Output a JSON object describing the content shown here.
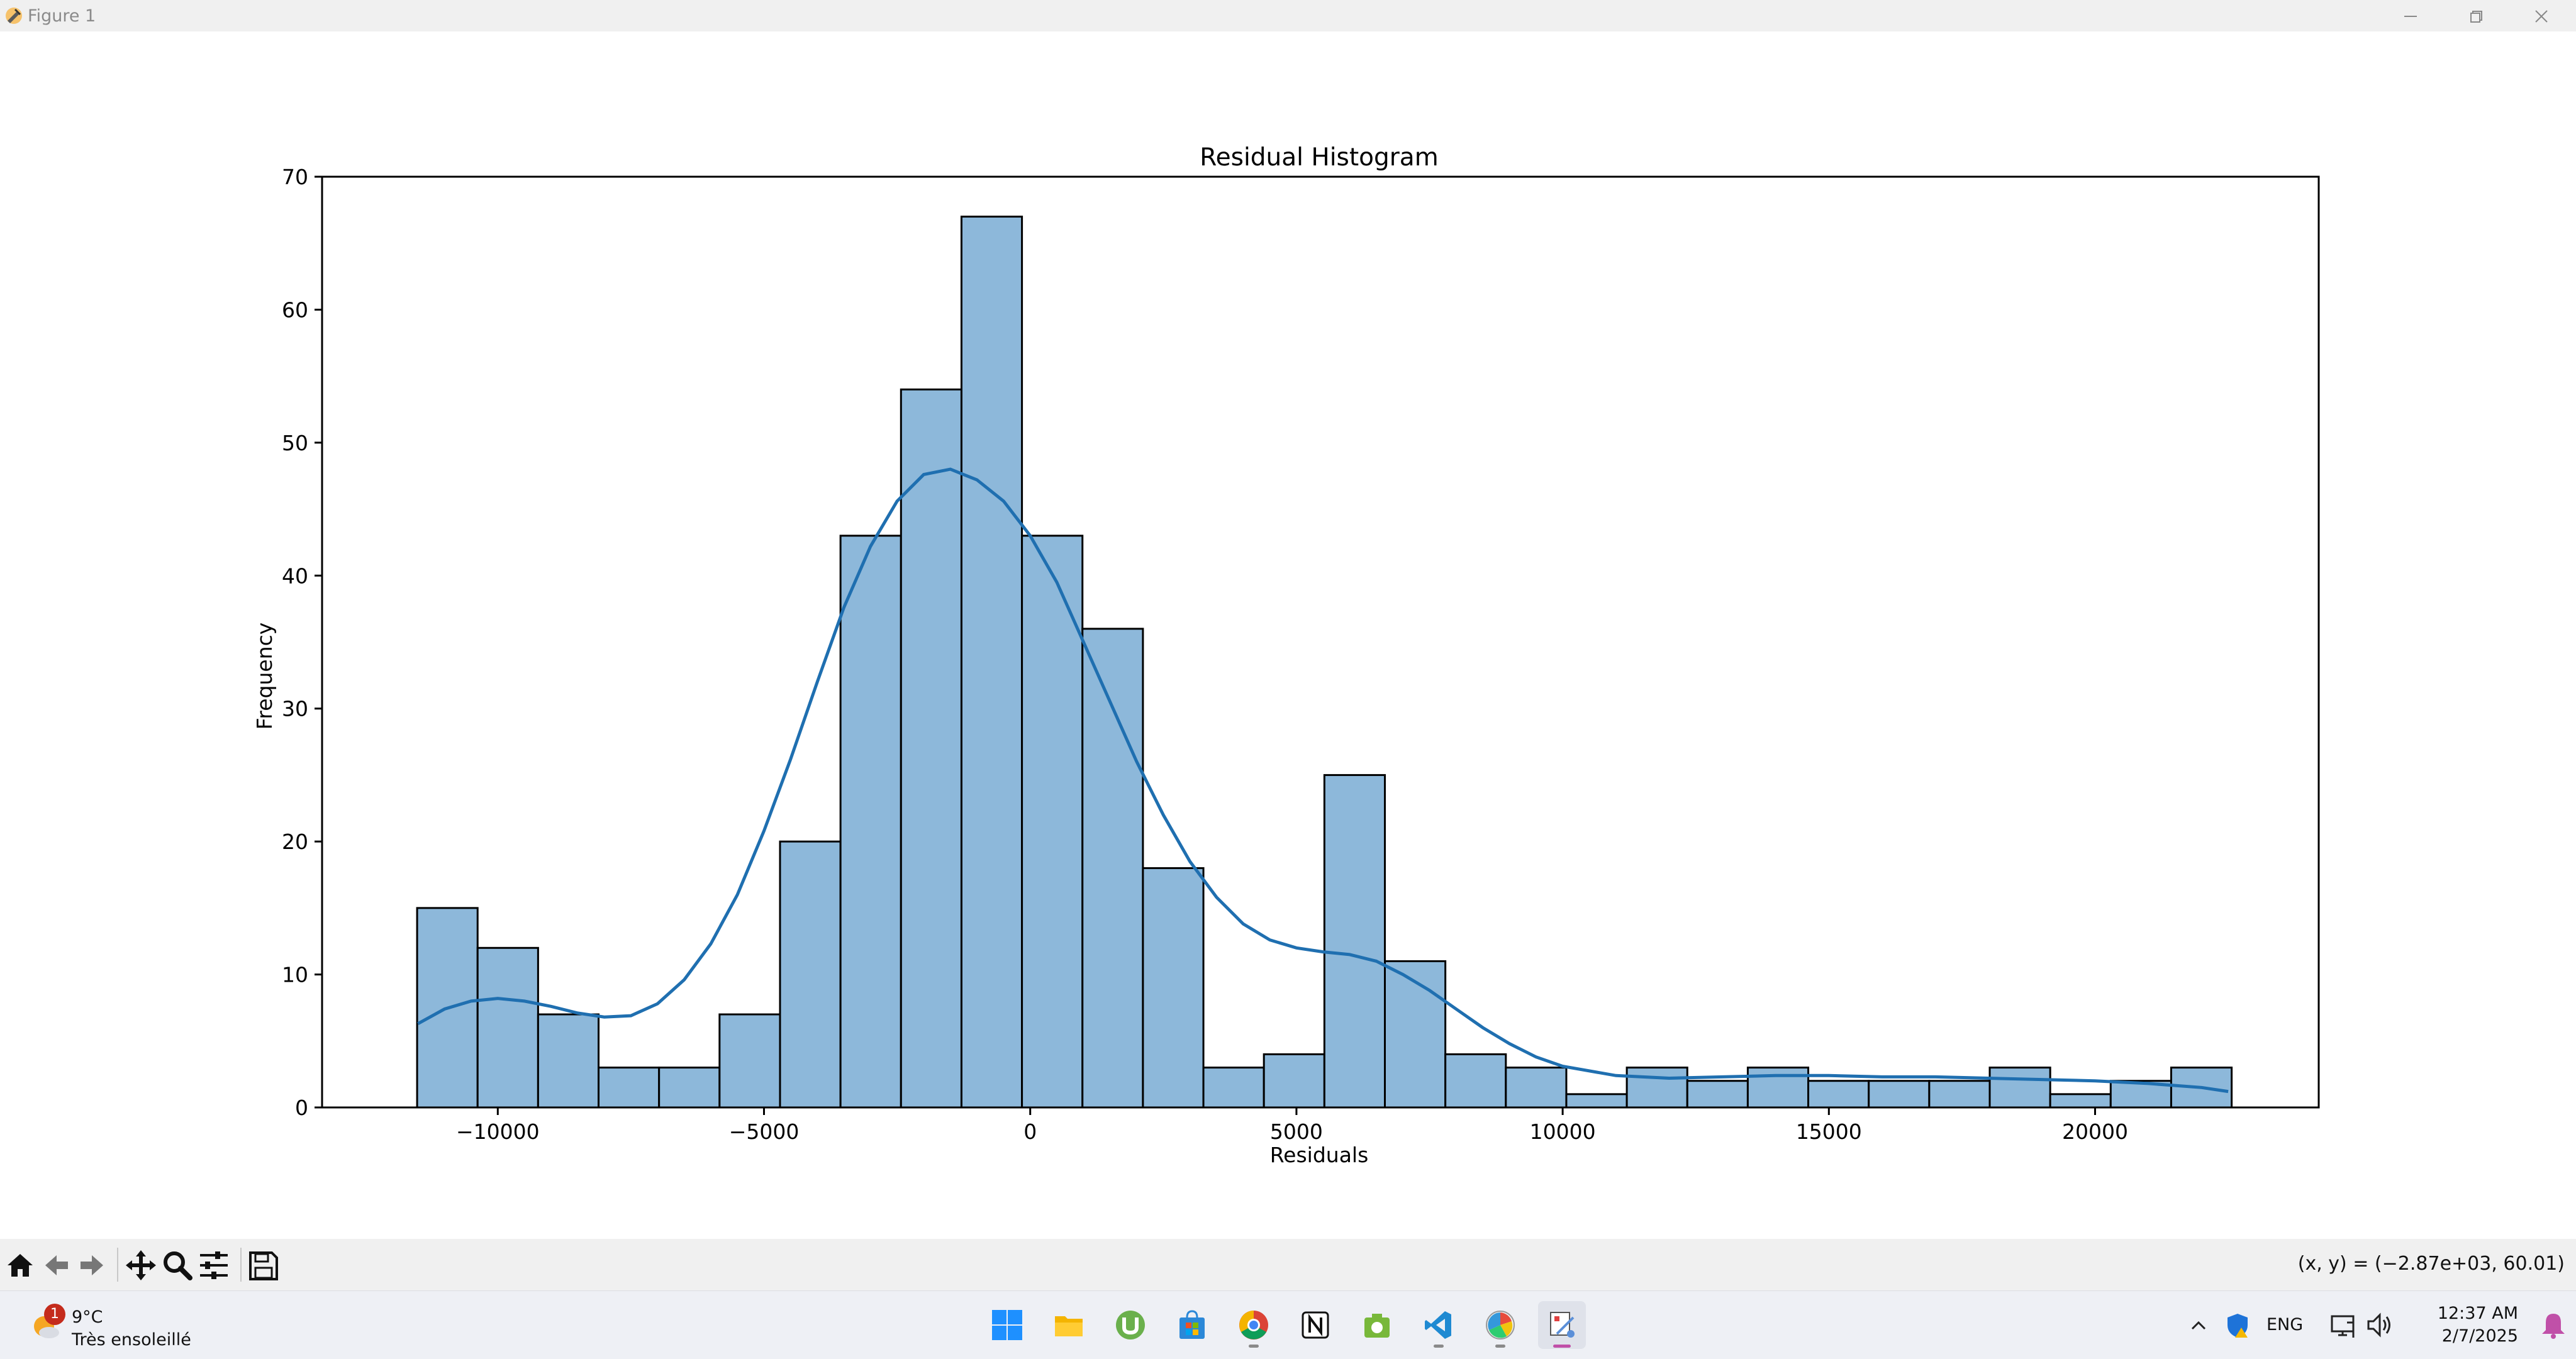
{
  "window": {
    "title": "Figure 1"
  },
  "chart_data": {
    "type": "bar",
    "title": "Residual Histogram",
    "xlabel": "Residuals",
    "ylabel": "Frequency",
    "xlim": [
      -13300,
      24200
    ],
    "ylim": [
      0,
      70
    ],
    "xticks": [
      -10000,
      -5000,
      0,
      5000,
      10000,
      15000,
      20000
    ],
    "xtick_labels": [
      "−10000",
      "−5000",
      "0",
      "5000",
      "10000",
      "15000",
      "20000"
    ],
    "yticks": [
      0,
      10,
      20,
      30,
      40,
      50,
      60,
      70
    ],
    "ytick_labels": [
      "0",
      "10",
      "20",
      "30",
      "40",
      "50",
      "60",
      "70"
    ],
    "bin_start": -11515,
    "bin_width": 1136,
    "values": [
      15,
      12,
      7,
      3,
      3,
      7,
      20,
      43,
      54,
      67,
      43,
      36,
      18,
      3,
      4,
      25,
      11,
      4,
      3,
      1,
      3,
      2,
      3,
      2,
      2,
      2,
      3,
      1,
      2,
      3
    ],
    "kde": {
      "x": [
        -11500,
        -11000,
        -10500,
        -10000,
        -9500,
        -9000,
        -8500,
        -8000,
        -7500,
        -7000,
        -6500,
        -6000,
        -5500,
        -5000,
        -4500,
        -4000,
        -3500,
        -3000,
        -2500,
        -2000,
        -1500,
        -1000,
        -500,
        0,
        500,
        1000,
        1500,
        2000,
        2500,
        3000,
        3500,
        4000,
        4500,
        5000,
        5500,
        6000,
        6500,
        7000,
        7500,
        8000,
        8500,
        9000,
        9500,
        10000,
        11000,
        12000,
        13000,
        14000,
        15000,
        16000,
        17000,
        18000,
        19000,
        20000,
        21000,
        22000,
        22500
      ],
      "y": [
        6.3,
        7.4,
        8.0,
        8.2,
        8.0,
        7.6,
        7.1,
        6.8,
        6.9,
        7.8,
        9.6,
        12.3,
        16.0,
        20.8,
        26.2,
        32.0,
        37.6,
        42.2,
        45.6,
        47.6,
        48.0,
        47.2,
        45.6,
        43.0,
        39.5,
        35.0,
        30.5,
        26.0,
        22.0,
        18.5,
        15.8,
        13.8,
        12.6,
        12.0,
        11.7,
        11.5,
        11.0,
        10.0,
        8.8,
        7.4,
        6.0,
        4.8,
        3.8,
        3.1,
        2.4,
        2.2,
        2.3,
        2.4,
        2.4,
        2.3,
        2.3,
        2.2,
        2.1,
        2.0,
        1.8,
        1.5,
        1.2
      ]
    },
    "bar_fill": "#8db8da",
    "bar_edge": "#000000",
    "line_color": "#1f6fb0",
    "grid": false,
    "legend": "none"
  },
  "toolbar": {
    "coordinates": "(x, y) = (−2.87e+03, 60.01)",
    "icons": [
      "home-icon",
      "back-arrow-icon",
      "forward-arrow-icon",
      "pan-icon",
      "zoom-icon",
      "configure-subplots-icon",
      "save-icon"
    ]
  },
  "taskbar": {
    "weather_temp": "9°C",
    "weather_condition": "Très ensoleillé",
    "weather_badge": "1",
    "language": "ENG",
    "time": "12:37 AM",
    "date": "2/7/2025",
    "apps": [
      "start-icon",
      "file-explorer-icon",
      "utorrent-icon",
      "microsoft-store-icon",
      "chrome-icon",
      "notion-icon",
      "camera-app-icon",
      "vscode-icon",
      "photo-app-icon",
      "python-figure-icon"
    ]
  }
}
